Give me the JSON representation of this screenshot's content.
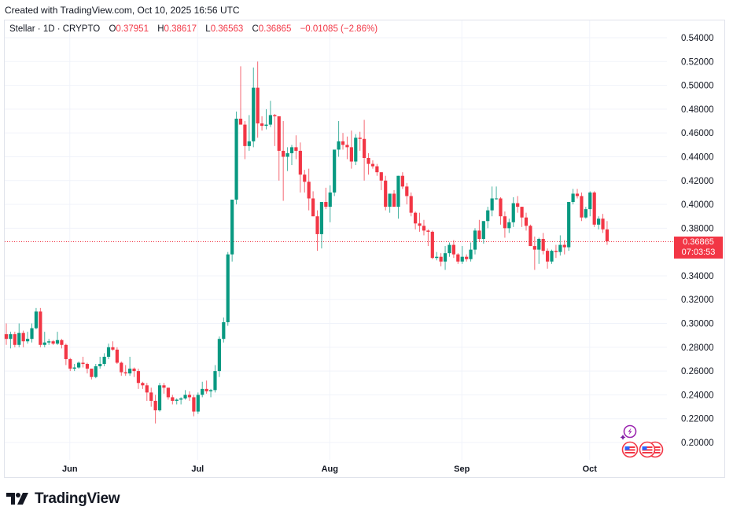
{
  "header": {
    "created_text": "Created with TradingView.com, Oct 10, 2025 16:56 UTC"
  },
  "legend": {
    "symbol": "Stellar · 1D · CRYPTO",
    "open_label": "O",
    "open": "0.37951",
    "high_label": "H",
    "high": "0.38617",
    "low_label": "L",
    "low": "0.36563",
    "close_label": "C",
    "close": "0.36865",
    "change": "−0.01085 (−2.86%)"
  },
  "price_tag": {
    "price": "0.36865",
    "countdown": "07:03:53"
  },
  "brand": {
    "name": "TradingView"
  },
  "colors": {
    "up": "#089981",
    "down": "#f23645",
    "grid": "#f0f3fa",
    "text": "#131722",
    "last_price_line": "#f23645"
  },
  "chart_data": {
    "type": "candlestick",
    "title": "Stellar · 1D · CRYPTO",
    "xlabel": "",
    "ylabel": "",
    "ylim": [
      0.19,
      0.55
    ],
    "y_ticks": [
      "0.54000",
      "0.52000",
      "0.50000",
      "0.48000",
      "0.46000",
      "0.44000",
      "0.42000",
      "0.40000",
      "0.38000",
      "0.34000",
      "0.32000",
      "0.30000",
      "0.28000",
      "0.26000",
      "0.24000",
      "0.22000",
      "0.20000"
    ],
    "x_ticks": [
      {
        "label": "Jun",
        "day_index": 15
      },
      {
        "label": "Jul",
        "day_index": 45
      },
      {
        "label": "Aug",
        "day_index": 76
      },
      {
        "label": "Sep",
        "day_index": 107
      },
      {
        "label": "Oct",
        "day_index": 137
      }
    ],
    "grid": true,
    "last_price": 0.36865,
    "candles": [
      [
        0.291,
        0.3,
        0.282,
        0.287
      ],
      [
        0.287,
        0.293,
        0.279,
        0.291
      ],
      [
        0.291,
        0.293,
        0.28,
        0.282
      ],
      [
        0.282,
        0.3,
        0.28,
        0.292
      ],
      [
        0.292,
        0.294,
        0.28,
        0.285
      ],
      [
        0.285,
        0.293,
        0.283,
        0.287
      ],
      [
        0.287,
        0.3,
        0.284,
        0.296
      ],
      [
        0.296,
        0.313,
        0.295,
        0.31
      ],
      [
        0.31,
        0.313,
        0.28,
        0.282
      ],
      [
        0.282,
        0.293,
        0.28,
        0.284
      ],
      [
        0.284,
        0.287,
        0.282,
        0.285
      ],
      [
        0.285,
        0.286,
        0.282,
        0.283
      ],
      [
        0.283,
        0.293,
        0.282,
        0.286
      ],
      [
        0.286,
        0.287,
        0.279,
        0.282
      ],
      [
        0.282,
        0.283,
        0.265,
        0.27
      ],
      [
        0.27,
        0.271,
        0.26,
        0.262
      ],
      [
        0.262,
        0.266,
        0.26,
        0.263
      ],
      [
        0.263,
        0.268,
        0.262,
        0.267
      ],
      [
        0.267,
        0.272,
        0.263,
        0.266
      ],
      [
        0.266,
        0.267,
        0.258,
        0.262
      ],
      [
        0.262,
        0.262,
        0.253,
        0.255
      ],
      [
        0.255,
        0.266,
        0.254,
        0.264
      ],
      [
        0.264,
        0.272,
        0.262,
        0.266
      ],
      [
        0.266,
        0.275,
        0.264,
        0.272
      ],
      [
        0.272,
        0.283,
        0.27,
        0.28
      ],
      [
        0.28,
        0.285,
        0.277,
        0.278
      ],
      [
        0.278,
        0.28,
        0.266,
        0.267
      ],
      [
        0.267,
        0.268,
        0.256,
        0.259
      ],
      [
        0.259,
        0.265,
        0.256,
        0.258
      ],
      [
        0.258,
        0.272,
        0.256,
        0.262
      ],
      [
        0.262,
        0.263,
        0.255,
        0.26
      ],
      [
        0.26,
        0.262,
        0.245,
        0.25
      ],
      [
        0.25,
        0.251,
        0.245,
        0.248
      ],
      [
        0.248,
        0.25,
        0.235,
        0.242
      ],
      [
        0.242,
        0.246,
        0.23,
        0.235
      ],
      [
        0.235,
        0.24,
        0.216,
        0.227
      ],
      [
        0.227,
        0.25,
        0.226,
        0.248
      ],
      [
        0.248,
        0.25,
        0.241,
        0.246
      ],
      [
        0.246,
        0.246,
        0.236,
        0.238
      ],
      [
        0.238,
        0.24,
        0.232,
        0.235
      ],
      [
        0.235,
        0.237,
        0.232,
        0.236
      ],
      [
        0.236,
        0.238,
        0.232,
        0.237
      ],
      [
        0.237,
        0.244,
        0.236,
        0.24
      ],
      [
        0.24,
        0.243,
        0.235,
        0.238
      ],
      [
        0.238,
        0.24,
        0.222,
        0.226
      ],
      [
        0.226,
        0.242,
        0.224,
        0.24
      ],
      [
        0.24,
        0.251,
        0.238,
        0.245
      ],
      [
        0.245,
        0.252,
        0.241,
        0.243
      ],
      [
        0.243,
        0.245,
        0.238,
        0.244
      ],
      [
        0.244,
        0.265,
        0.242,
        0.26
      ],
      [
        0.26,
        0.289,
        0.255,
        0.287
      ],
      [
        0.287,
        0.305,
        0.284,
        0.301
      ],
      [
        0.301,
        0.36,
        0.298,
        0.358
      ],
      [
        0.358,
        0.401,
        0.352,
        0.404
      ],
      [
        0.404,
        0.478,
        0.4,
        0.472
      ],
      [
        0.472,
        0.516,
        0.469,
        0.467
      ],
      [
        0.467,
        0.47,
        0.438,
        0.449
      ],
      [
        0.449,
        0.475,
        0.445,
        0.453
      ],
      [
        0.453,
        0.515,
        0.448,
        0.498
      ],
      [
        0.498,
        0.52,
        0.456,
        0.468
      ],
      [
        0.468,
        0.474,
        0.462,
        0.466
      ],
      [
        0.466,
        0.48,
        0.463,
        0.467
      ],
      [
        0.467,
        0.487,
        0.465,
        0.475
      ],
      [
        0.475,
        0.476,
        0.449,
        0.474
      ],
      [
        0.474,
        0.474,
        0.42,
        0.445
      ],
      [
        0.445,
        0.47,
        0.403,
        0.44
      ],
      [
        0.44,
        0.448,
        0.428,
        0.443
      ],
      [
        0.443,
        0.45,
        0.433,
        0.448
      ],
      [
        0.448,
        0.458,
        0.438,
        0.445
      ],
      [
        0.445,
        0.452,
        0.41,
        0.425
      ],
      [
        0.425,
        0.429,
        0.41,
        0.419
      ],
      [
        0.419,
        0.43,
        0.395,
        0.405
      ],
      [
        0.405,
        0.411,
        0.39,
        0.39
      ],
      [
        0.39,
        0.395,
        0.361,
        0.375
      ],
      [
        0.375,
        0.401,
        0.363,
        0.402
      ],
      [
        0.402,
        0.414,
        0.396,
        0.398
      ],
      [
        0.398,
        0.416,
        0.385,
        0.41
      ],
      [
        0.41,
        0.44,
        0.407,
        0.446
      ],
      [
        0.446,
        0.47,
        0.44,
        0.453
      ],
      [
        0.453,
        0.46,
        0.446,
        0.45
      ],
      [
        0.45,
        0.457,
        0.438,
        0.448
      ],
      [
        0.448,
        0.462,
        0.43,
        0.436
      ],
      [
        0.436,
        0.459,
        0.433,
        0.456
      ],
      [
        0.456,
        0.461,
        0.445,
        0.455
      ],
      [
        0.455,
        0.471,
        0.42,
        0.439
      ],
      [
        0.439,
        0.443,
        0.425,
        0.434
      ],
      [
        0.434,
        0.437,
        0.43,
        0.432
      ],
      [
        0.432,
        0.434,
        0.424,
        0.427
      ],
      [
        0.427,
        0.427,
        0.412,
        0.42
      ],
      [
        0.42,
        0.424,
        0.395,
        0.398
      ],
      [
        0.398,
        0.409,
        0.393,
        0.409
      ],
      [
        0.409,
        0.412,
        0.398,
        0.398
      ],
      [
        0.398,
        0.424,
        0.388,
        0.424
      ],
      [
        0.424,
        0.427,
        0.413,
        0.415
      ],
      [
        0.415,
        0.418,
        0.4,
        0.407
      ],
      [
        0.407,
        0.41,
        0.39,
        0.393
      ],
      [
        0.393,
        0.394,
        0.379,
        0.384
      ],
      [
        0.384,
        0.393,
        0.377,
        0.382
      ],
      [
        0.382,
        0.387,
        0.374,
        0.378
      ],
      [
        0.378,
        0.379,
        0.365,
        0.377
      ],
      [
        0.377,
        0.378,
        0.354,
        0.355
      ],
      [
        0.355,
        0.36,
        0.353,
        0.356
      ],
      [
        0.356,
        0.359,
        0.348,
        0.352
      ],
      [
        0.352,
        0.365,
        0.345,
        0.359
      ],
      [
        0.359,
        0.368,
        0.356,
        0.366
      ],
      [
        0.366,
        0.37,
        0.355,
        0.358
      ],
      [
        0.358,
        0.359,
        0.35,
        0.352
      ],
      [
        0.352,
        0.365,
        0.35,
        0.356
      ],
      [
        0.356,
        0.358,
        0.352,
        0.354
      ],
      [
        0.354,
        0.368,
        0.352,
        0.362
      ],
      [
        0.362,
        0.38,
        0.358,
        0.378
      ],
      [
        0.378,
        0.387,
        0.369,
        0.371
      ],
      [
        0.371,
        0.386,
        0.367,
        0.386
      ],
      [
        0.386,
        0.398,
        0.38,
        0.395
      ],
      [
        0.395,
        0.415,
        0.39,
        0.405
      ],
      [
        0.405,
        0.415,
        0.404,
        0.405
      ],
      [
        0.405,
        0.406,
        0.383,
        0.39
      ],
      [
        0.39,
        0.394,
        0.372,
        0.38
      ],
      [
        0.38,
        0.388,
        0.376,
        0.385
      ],
      [
        0.385,
        0.406,
        0.381,
        0.401
      ],
      [
        0.401,
        0.407,
        0.393,
        0.398
      ],
      [
        0.398,
        0.398,
        0.381,
        0.389
      ],
      [
        0.389,
        0.393,
        0.378,
        0.382
      ],
      [
        0.382,
        0.383,
        0.365,
        0.365
      ],
      [
        0.365,
        0.373,
        0.345,
        0.362
      ],
      [
        0.362,
        0.372,
        0.35,
        0.371
      ],
      [
        0.371,
        0.376,
        0.358,
        0.361
      ],
      [
        0.361,
        0.363,
        0.346,
        0.352
      ],
      [
        0.352,
        0.362,
        0.35,
        0.361
      ],
      [
        0.361,
        0.366,
        0.355,
        0.36
      ],
      [
        0.36,
        0.374,
        0.357,
        0.366
      ],
      [
        0.366,
        0.37,
        0.358,
        0.364
      ],
      [
        0.364,
        0.402,
        0.361,
        0.402
      ],
      [
        0.402,
        0.413,
        0.4,
        0.409
      ],
      [
        0.409,
        0.413,
        0.405,
        0.407
      ],
      [
        0.407,
        0.41,
        0.386,
        0.389
      ],
      [
        0.389,
        0.398,
        0.388,
        0.396
      ],
      [
        0.396,
        0.411,
        0.39,
        0.41
      ],
      [
        0.41,
        0.411,
        0.381,
        0.383
      ],
      [
        0.383,
        0.39,
        0.379,
        0.388
      ],
      [
        0.388,
        0.392,
        0.376,
        0.379
      ],
      [
        0.379,
        0.386,
        0.366,
        0.369
      ]
    ]
  },
  "event_icons": [
    {
      "type": "lightning-event",
      "count": 1
    },
    {
      "type": "us-economic-event",
      "count": 3
    }
  ]
}
